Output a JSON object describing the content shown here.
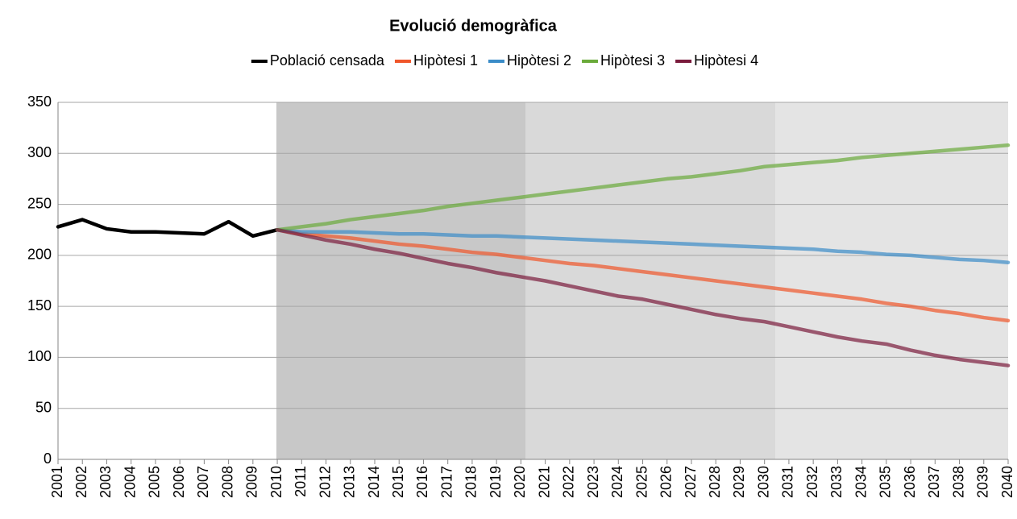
{
  "chart_data": {
    "type": "line",
    "title": "Evolució demogràfica",
    "categories": [
      "2001",
      "2002",
      "2003",
      "2004",
      "2005",
      "2006",
      "2007",
      "2008",
      "2009",
      "2010",
      "2011",
      "2012",
      "2013",
      "2014",
      "2015",
      "2016",
      "2017",
      "2018",
      "2019",
      "2020",
      "2021",
      "2022",
      "2023",
      "2024",
      "2025",
      "2026",
      "2027",
      "2028",
      "2029",
      "2030",
      "2031",
      "2032",
      "2033",
      "2034",
      "2035",
      "2036",
      "2037",
      "2038",
      "2039",
      "2040"
    ],
    "series": [
      {
        "name": "Població censada",
        "color": "#000000",
        "values": [
          228,
          235,
          226,
          223,
          223,
          222,
          221,
          233,
          219,
          225,
          null,
          null,
          null,
          null,
          null,
          null,
          null,
          null,
          null,
          null,
          null,
          null,
          null,
          null,
          null,
          null,
          null,
          null,
          null,
          null,
          null,
          null,
          null,
          null,
          null,
          null,
          null,
          null,
          null,
          null
        ]
      },
      {
        "name": "Hipòtesi 1",
        "color": "#f0562a",
        "values": [
          null,
          null,
          null,
          null,
          null,
          null,
          null,
          null,
          null,
          225,
          221,
          219,
          217,
          214,
          211,
          209,
          206,
          203,
          201,
          198,
          195,
          192,
          190,
          187,
          184,
          181,
          178,
          175,
          172,
          169,
          166,
          163,
          160,
          157,
          153,
          150,
          146,
          143,
          139,
          136
        ]
      },
      {
        "name": "Hipòtesi 2",
        "color": "#3a8cc8",
        "values": [
          null,
          null,
          null,
          null,
          null,
          null,
          null,
          null,
          null,
          225,
          223,
          223,
          223,
          222,
          221,
          221,
          220,
          219,
          219,
          218,
          217,
          216,
          215,
          214,
          213,
          212,
          211,
          210,
          209,
          208,
          207,
          206,
          204,
          203,
          201,
          200,
          198,
          196,
          195,
          193
        ]
      },
      {
        "name": "Hipòtesi 3",
        "color": "#6aaa3a",
        "values": [
          null,
          null,
          null,
          null,
          null,
          null,
          null,
          null,
          null,
          225,
          228,
          231,
          235,
          238,
          241,
          244,
          248,
          251,
          254,
          257,
          260,
          263,
          266,
          269,
          272,
          275,
          277,
          280,
          283,
          287,
          289,
          291,
          293,
          296,
          298,
          300,
          302,
          304,
          306,
          308
        ]
      },
      {
        "name": "Hipòtesi 4",
        "color": "#7a1b3c",
        "values": [
          null,
          null,
          null,
          null,
          null,
          null,
          null,
          null,
          null,
          225,
          220,
          215,
          211,
          206,
          202,
          197,
          192,
          188,
          183,
          179,
          175,
          170,
          165,
          160,
          157,
          152,
          147,
          142,
          138,
          135,
          130,
          125,
          120,
          116,
          113,
          107,
          102,
          98,
          95,
          92
        ]
      }
    ],
    "ylim": [
      0,
      350
    ],
    "yticks": [
      0,
      50,
      100,
      150,
      200,
      250,
      300,
      350
    ],
    "grid": true
  }
}
